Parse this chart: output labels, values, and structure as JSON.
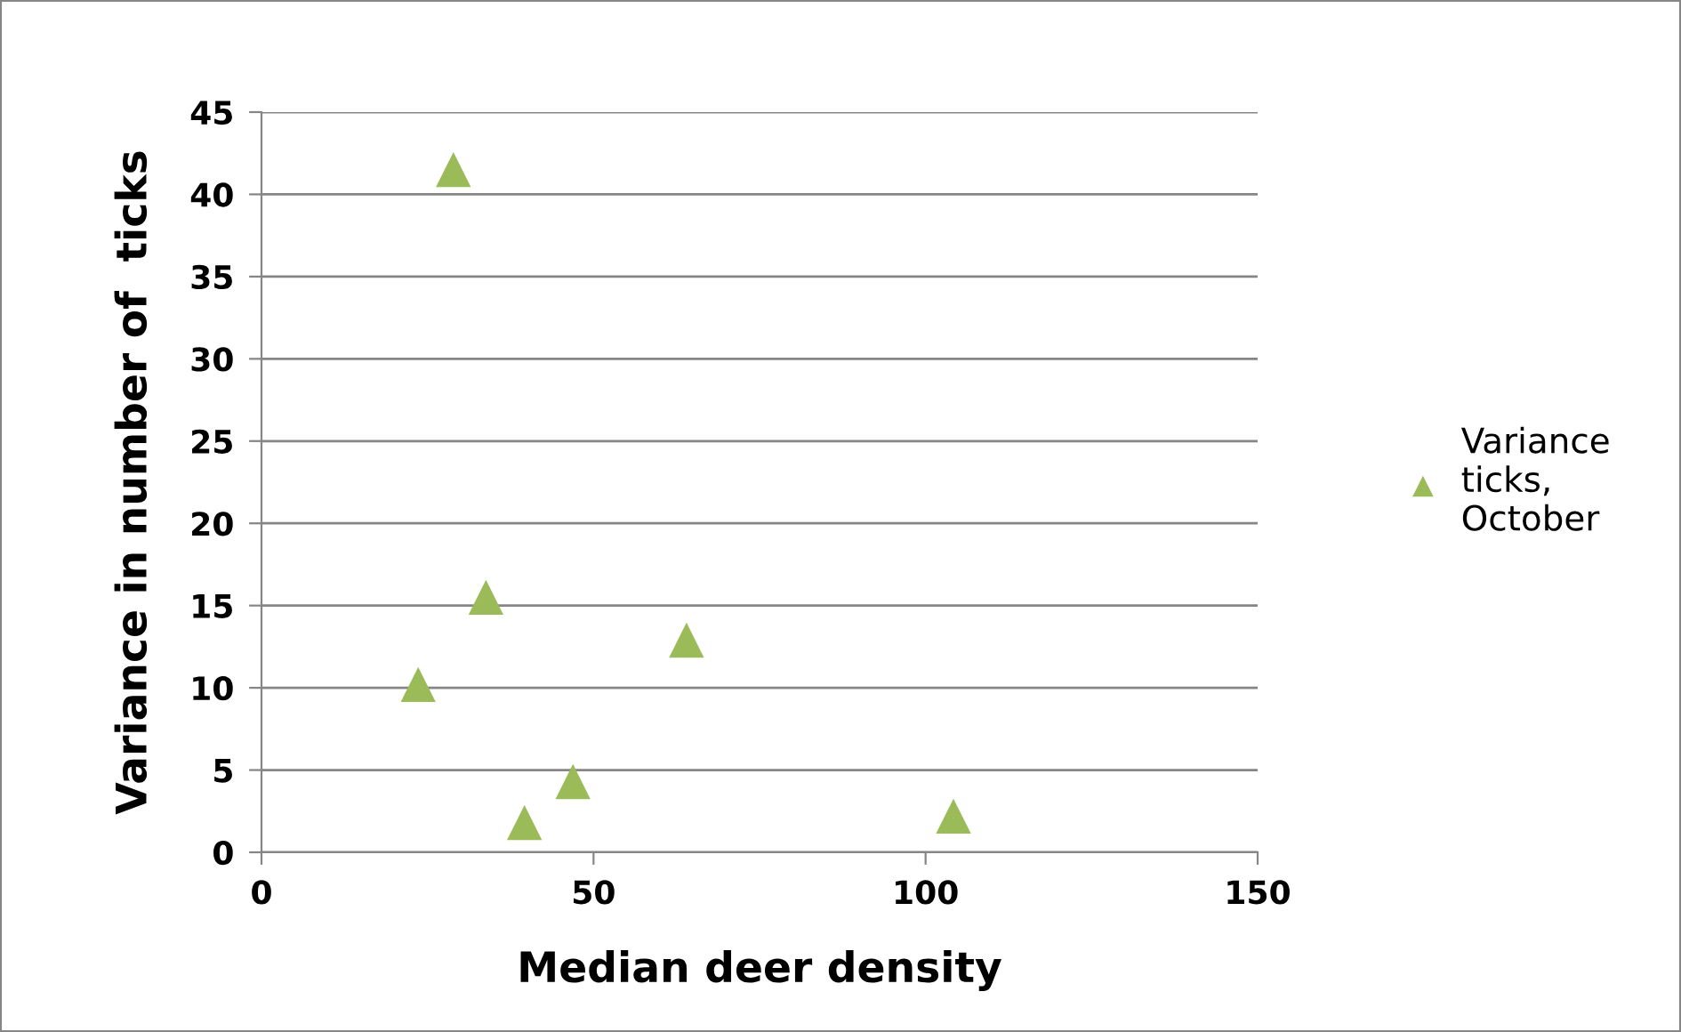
{
  "chart_data": {
    "type": "scatter",
    "xlabel": "Median deer density",
    "ylabel": "Variance in number of  ticks",
    "x": [
      28.9,
      33.8,
      23.6,
      64.0,
      46.9,
      39.6,
      104.2
    ],
    "series": [
      {
        "name": "Variance ticks, October",
        "color": "#9bbb59",
        "values": [
          41.5,
          15.5,
          10.2,
          12.9,
          4.3,
          1.8,
          2.2
        ]
      }
    ],
    "xlim": [
      0,
      150
    ],
    "xticks": [
      0,
      50,
      100,
      150
    ],
    "ylim": [
      0,
      45
    ],
    "yticks": [
      0,
      5,
      10,
      15,
      20,
      25,
      30,
      35,
      40,
      45
    ],
    "grid": "y",
    "legend": "right",
    "marker": "triangle"
  }
}
